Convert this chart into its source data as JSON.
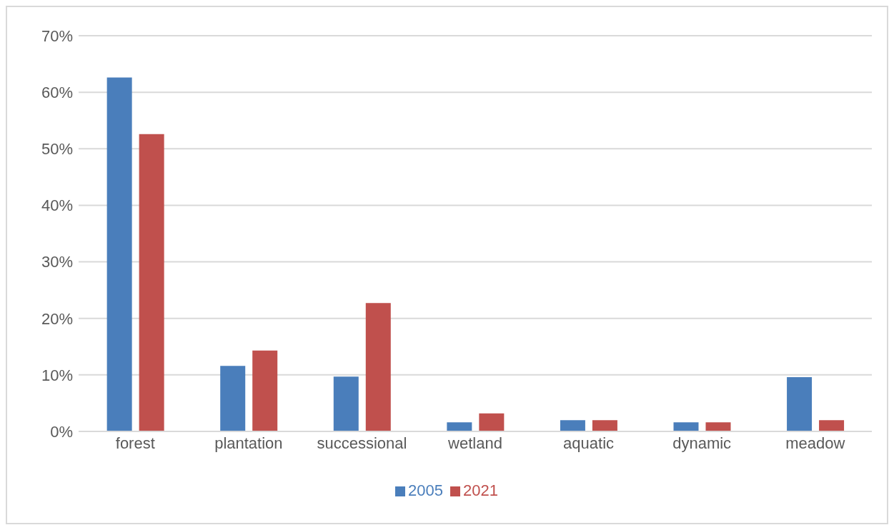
{
  "chart_data": {
    "type": "bar",
    "categories": [
      "forest",
      "plantation",
      "successional",
      "wetland",
      "aquatic",
      "dynamic",
      "meadow"
    ],
    "series": [
      {
        "name": "2005",
        "color": "#4a7ebb",
        "values": [
          62.6,
          11.6,
          9.7,
          1.6,
          2.0,
          1.6,
          9.6
        ]
      },
      {
        "name": "2021",
        "color": "#c0504d",
        "values": [
          52.6,
          14.3,
          22.7,
          3.2,
          2.0,
          1.6,
          2.0
        ]
      }
    ],
    "ylim": [
      0,
      70
    ],
    "yticks": [
      {
        "value": 0,
        "label": "0%"
      },
      {
        "value": 10,
        "label": "10%"
      },
      {
        "value": 20,
        "label": "20%"
      },
      {
        "value": 30,
        "label": "30%"
      },
      {
        "value": 40,
        "label": "40%"
      },
      {
        "value": 50,
        "label": "50%"
      },
      {
        "value": 60,
        "label": "60%"
      },
      {
        "value": 70,
        "label": "70%"
      }
    ],
    "grid": "y",
    "legend": "bottom"
  }
}
